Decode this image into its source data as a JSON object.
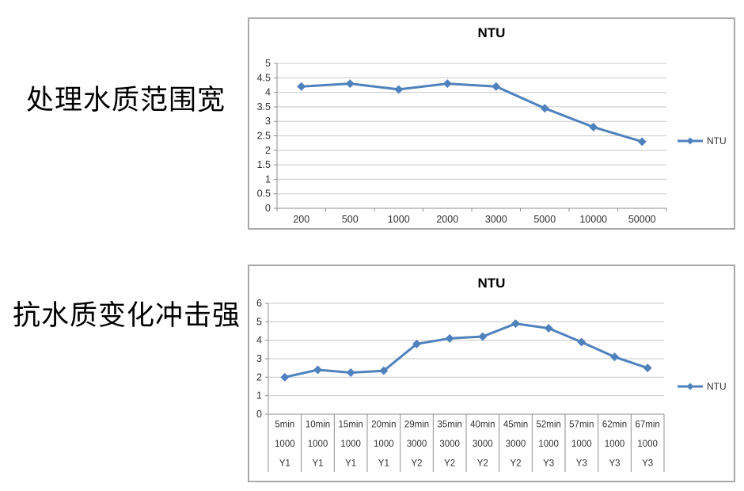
{
  "page": {
    "background": "#ffffff"
  },
  "left_labels": [
    {
      "text": "处理水质范围宽"
    },
    {
      "text": "抗水质变化冲击强"
    }
  ],
  "colors": {
    "series_blue": "#4F81BD",
    "gridline": "#c9c9c9",
    "axis": "#8e8e8e",
    "chart_border": "#a9a9a9",
    "text": "#303030"
  },
  "chart_data": [
    {
      "type": "line",
      "title": "NTU",
      "legend": "NTU",
      "legend_position": "right",
      "color": "#4F81BD",
      "grid": true,
      "marker": "diamond",
      "categories": [
        "200",
        "500",
        "1000",
        "2000",
        "3000",
        "5000",
        "10000",
        "50000"
      ],
      "values": [
        4.2,
        4.3,
        4.1,
        4.3,
        4.2,
        3.45,
        2.8,
        2.3
      ],
      "xlabel": "",
      "ylabel": "",
      "ylim": [
        0,
        5
      ],
      "ystep": 0.5
    },
    {
      "type": "line",
      "title": "NTU",
      "legend": "NTU",
      "legend_position": "right",
      "color": "#4F81BD",
      "grid": true,
      "marker": "diamond",
      "categories": [
        "5min",
        "10min",
        "15min",
        "20min",
        "29min",
        "35min",
        "40min",
        "45min",
        "52min",
        "57min",
        "62min",
        "67min"
      ],
      "category_rows": [
        [
          "5min",
          "10min",
          "15min",
          "20min",
          "29min",
          "35min",
          "40min",
          "45min",
          "52min",
          "57min",
          "62min",
          "67min"
        ],
        [
          "1000",
          "1000",
          "1000",
          "1000",
          "3000",
          "3000",
          "3000",
          "3000",
          "1000",
          "1000",
          "1000",
          "1000"
        ],
        [
          "Y1",
          "Y1",
          "Y1",
          "Y1",
          "Y2",
          "Y2",
          "Y2",
          "Y2",
          "Y3",
          "Y3",
          "Y3",
          "Y3"
        ]
      ],
      "values": [
        2.0,
        2.4,
        2.25,
        2.35,
        3.8,
        4.1,
        4.2,
        4.9,
        4.65,
        3.9,
        3.1,
        2.5
      ],
      "xlabel": "",
      "ylabel": "",
      "ylim": [
        0,
        6
      ],
      "ystep": 1
    }
  ]
}
